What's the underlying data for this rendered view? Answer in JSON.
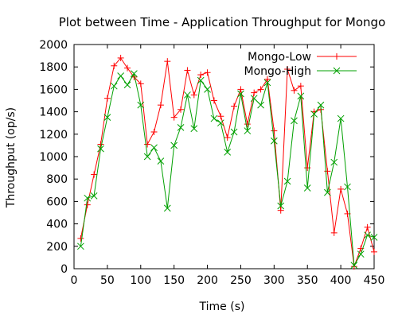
{
  "chart_data": {
    "type": "line",
    "title": "Plot between Time - Application Throughput for Mongo",
    "xlabel": "Time (s)",
    "ylabel": "Throughput (op/s)",
    "xlim": [
      0,
      450
    ],
    "ylim": [
      0,
      2000
    ],
    "x_ticks": [
      "0",
      "50",
      "100",
      "150",
      "200",
      "250",
      "300",
      "350",
      "400",
      "450"
    ],
    "y_ticks": [
      "0",
      "200",
      "400",
      "600",
      "800",
      "1000",
      "1200",
      "1400",
      "1600",
      "1800",
      "2000"
    ],
    "grid": false,
    "legend_position": "top-right",
    "series": [
      {
        "name": "Mongo-Low",
        "color": "#ff0000",
        "marker": "plus",
        "x": [
          10,
          20,
          30,
          40,
          50,
          60,
          70,
          80,
          90,
          100,
          110,
          120,
          130,
          140,
          150,
          160,
          170,
          180,
          190,
          200,
          210,
          220,
          230,
          240,
          250,
          260,
          270,
          280,
          290,
          300,
          310,
          320,
          330,
          340,
          350,
          360,
          370,
          380,
          390,
          400,
          410,
          420,
          430,
          440,
          450
        ],
        "y": [
          270,
          570,
          840,
          1110,
          1520,
          1810,
          1880,
          1790,
          1710,
          1650,
          1110,
          1220,
          1460,
          1850,
          1350,
          1420,
          1770,
          1550,
          1730,
          1750,
          1500,
          1360,
          1170,
          1450,
          1600,
          1290,
          1570,
          1600,
          1690,
          1230,
          520,
          1780,
          1590,
          1630,
          900,
          1400,
          1420,
          870,
          320,
          710,
          490,
          20,
          180,
          370,
          150
        ]
      },
      {
        "name": "Mongo-High",
        "color": "#00a000",
        "marker": "cross",
        "x": [
          10,
          20,
          30,
          40,
          50,
          60,
          70,
          80,
          90,
          100,
          110,
          120,
          130,
          140,
          150,
          160,
          170,
          180,
          190,
          200,
          210,
          220,
          230,
          240,
          250,
          260,
          270,
          280,
          290,
          300,
          310,
          320,
          330,
          340,
          350,
          360,
          370,
          380,
          390,
          400,
          410,
          420,
          430,
          440,
          450
        ],
        "y": [
          200,
          630,
          650,
          1070,
          1350,
          1630,
          1720,
          1640,
          1740,
          1460,
          1000,
          1080,
          960,
          540,
          1100,
          1260,
          1550,
          1250,
          1680,
          1600,
          1340,
          1300,
          1040,
          1220,
          1560,
          1230,
          1520,
          1460,
          1660,
          1140,
          560,
          780,
          1320,
          1540,
          720,
          1380,
          1460,
          680,
          950,
          1340,
          730,
          30,
          130,
          300,
          280
        ]
      }
    ]
  }
}
